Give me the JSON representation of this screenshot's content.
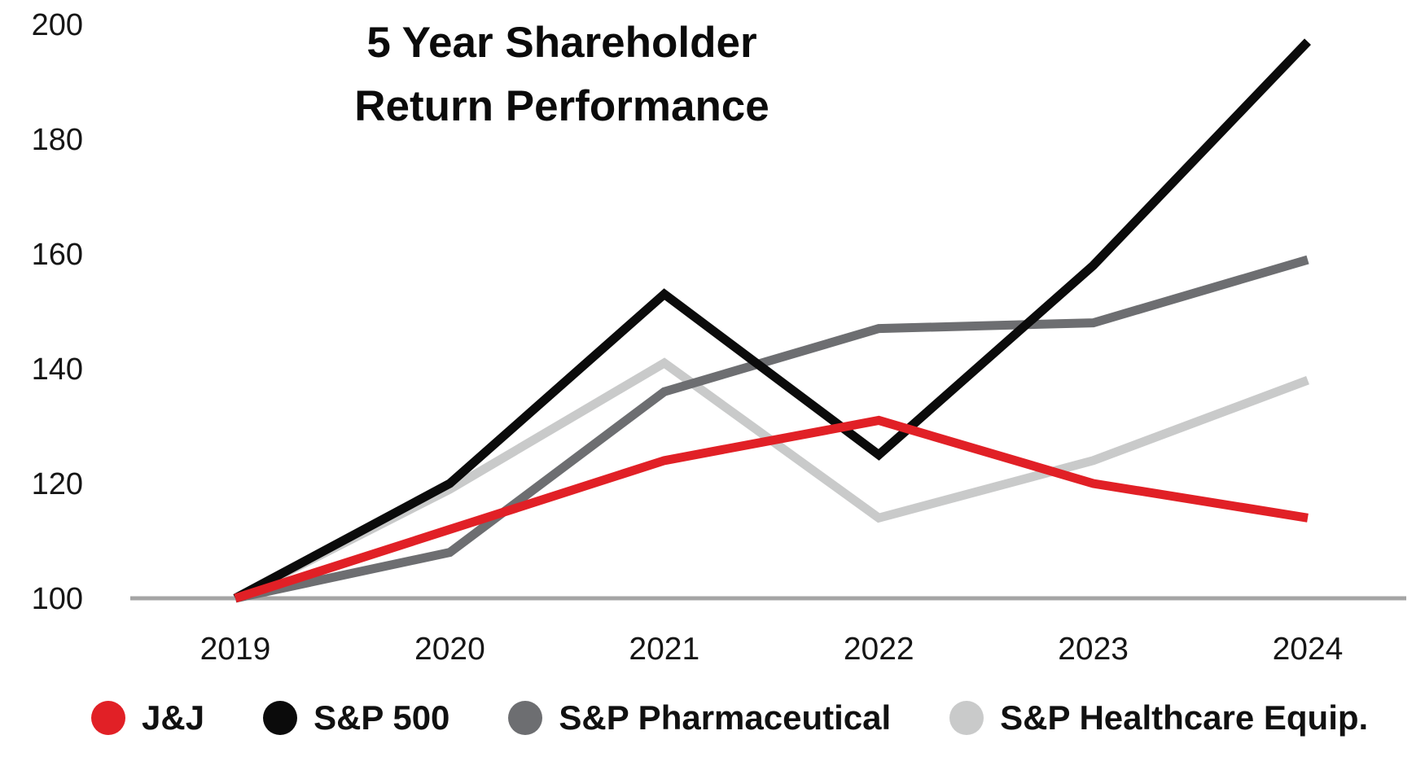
{
  "title": {
    "line1": "5 Year Shareholder",
    "line2": "Return Performance"
  },
  "chart_data": {
    "type": "line",
    "title": "5 Year Shareholder Return Performance",
    "categories": [
      "2019",
      "2020",
      "2021",
      "2022",
      "2023",
      "2024"
    ],
    "xlabel": "",
    "ylabel": "",
    "ylim": [
      100,
      200
    ],
    "yticks": [
      100,
      120,
      140,
      160,
      180,
      200
    ],
    "grid": false,
    "legend_position": "bottom",
    "axis_color": "#a5a5a5",
    "series": [
      {
        "name": "J&J",
        "color": "#e12026",
        "values": [
          100,
          112,
          124,
          131,
          120,
          114
        ]
      },
      {
        "name": "S&P 500",
        "color": "#0b0b0b",
        "values": [
          100,
          120,
          153,
          125,
          158,
          197
        ]
      },
      {
        "name": "S&P Pharmaceutical",
        "color": "#6d6e71",
        "values": [
          100,
          108,
          136,
          147,
          148,
          159
        ]
      },
      {
        "name": "S&P Healthcare Equip.",
        "color": "#c9caca",
        "values": [
          100,
          119,
          141,
          114,
          124,
          138
        ]
      }
    ]
  }
}
